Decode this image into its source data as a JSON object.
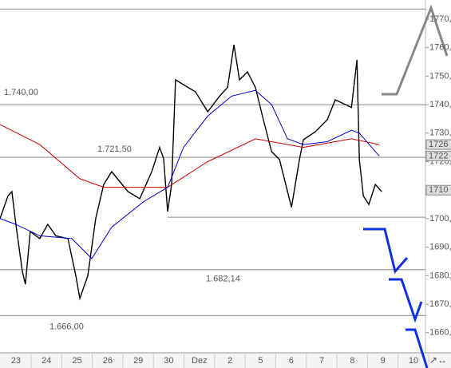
{
  "chart_data": {
    "type": "line",
    "xlim": [
      -0.52,
      13.39
    ],
    "ylim": [
      1653.5,
      1776.7
    ],
    "xticks": [
      {
        "value": 0,
        "label": "23"
      },
      {
        "value": 1,
        "label": "24"
      },
      {
        "value": 2,
        "label": "25"
      },
      {
        "value": 3,
        "label": "26"
      },
      {
        "value": 4,
        "label": "29"
      },
      {
        "value": 5,
        "label": "30"
      },
      {
        "value": 6,
        "label": "Dez"
      },
      {
        "value": 7,
        "label": "2"
      },
      {
        "value": 8,
        "label": "5"
      },
      {
        "value": 9,
        "label": "6"
      },
      {
        "value": 10,
        "label": "7"
      },
      {
        "value": 11,
        "label": "8"
      },
      {
        "value": 12,
        "label": "9"
      },
      {
        "value": 13,
        "label": "10"
      }
    ],
    "yticks": [
      {
        "value": 1660,
        "label": "1660,00"
      },
      {
        "value": 1670,
        "label": "1670,00"
      },
      {
        "value": 1680,
        "label": "1680,00"
      },
      {
        "value": 1690,
        "label": "1690,00"
      },
      {
        "value": 1700,
        "label": "1700,00"
      },
      {
        "value": 1710,
        "label": "1710,00"
      },
      {
        "value": 1720,
        "label": "1720,00"
      },
      {
        "value": 1730,
        "label": "1730,00"
      },
      {
        "value": 1740,
        "label": "1740,00"
      },
      {
        "value": 1750,
        "label": "1750,00"
      },
      {
        "value": 1760,
        "label": "1760,00"
      },
      {
        "value": 1770,
        "label": "1770,00"
      }
    ],
    "levels": [
      {
        "value": 1773.5
      },
      {
        "value": 1740,
        "label": "1.740,00"
      },
      {
        "value": 1721.5,
        "label": "1.721,50"
      },
      {
        "value": 1700.5
      },
      {
        "value": 1682.14,
        "label": "1.682,14"
      },
      {
        "value": 1666,
        "label": "1.666,00"
      }
    ],
    "price_tags": [
      1726,
      1722,
      1710
    ],
    "series": [
      {
        "color": "#000000",
        "x": [
          -0.52,
          -0.26,
          -0.13,
          0,
          0.21,
          0.31,
          0.47,
          0.78,
          1.04,
          1.31,
          1.7,
          1.96,
          2.09,
          2.35,
          2.61,
          2.87,
          3.13,
          3.66,
          4.05,
          4.44,
          4.7,
          4.83,
          4.96,
          5.09,
          5.22,
          5.48,
          5.87,
          6.27,
          6.66,
          6.92,
          7.13,
          7.31,
          7.57,
          7.83,
          8.09,
          8.36,
          8.62,
          8.88,
          9.01,
          9.27,
          9.4,
          9.79,
          10.18,
          10.44,
          10.97,
          11.15,
          11.23,
          11.36,
          11.54,
          11.75,
          11.96
        ],
        "values": [
          1700,
          1708,
          1709.5,
          1698,
          1681.5,
          1677,
          1695.5,
          1693,
          1698,
          1694,
          1693,
          1680,
          1672,
          1680,
          1700,
          1712,
          1716.5,
          1709.5,
          1707,
          1716.5,
          1725,
          1721,
          1702.5,
          1712,
          1748.7,
          1747,
          1744.5,
          1737.5,
          1743,
          1746,
          1761,
          1748.7,
          1751.5,
          1746,
          1734.7,
          1723.5,
          1720.7,
          1709.5,
          1704,
          1720.7,
          1727.7,
          1730.5,
          1734.7,
          1741.7,
          1739,
          1755.7,
          1720.7,
          1708,
          1705,
          1712,
          1709.5
        ]
      },
      {
        "color": "#cc0000",
        "x": [
          -0.52,
          0.78,
          2.09,
          2.87,
          4.96,
          6.27,
          7.83,
          9.4,
          10.97,
          11.88
        ],
        "values": [
          1733,
          1726,
          1714,
          1711,
          1711,
          1720,
          1728,
          1725,
          1728,
          1726
        ]
      },
      {
        "color": "#0000cc",
        "x": [
          -0.52,
          0,
          0.78,
          1.83,
          2.48,
          3.13,
          4.18,
          4.96,
          5.48,
          6.27,
          7.05,
          7.83,
          8.36,
          8.88,
          9.4,
          10.18,
          10.97,
          11.23,
          11.88
        ],
        "values": [
          1700,
          1698,
          1694,
          1693,
          1686,
          1697,
          1706,
          1711,
          1725,
          1736,
          1743,
          1745,
          1740,
          1728,
          1726,
          1727,
          1731,
          1730,
          1722
        ]
      }
    ]
  }
}
